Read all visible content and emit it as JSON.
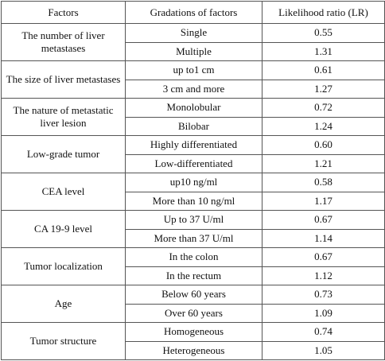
{
  "table": {
    "header": [
      "Factors",
      "Gradations of factors",
      "Likelihood ratio (LR)"
    ],
    "groups": [
      {
        "factor": "The number of liver metastases",
        "rows": [
          {
            "gradation": "Single",
            "lr": "0.55"
          },
          {
            "gradation": "Multiple",
            "lr": "1.31"
          }
        ]
      },
      {
        "factor": "The size of liver metastases",
        "rows": [
          {
            "gradation": "up to1 cm",
            "lr": "0.61"
          },
          {
            "gradation": "3 cm and more",
            "lr": "1.27"
          }
        ]
      },
      {
        "factor": "The nature of metastatic liver lesion",
        "rows": [
          {
            "gradation": "Monolobular",
            "lr": "0.72"
          },
          {
            "gradation": "Bilobar",
            "lr": "1.24"
          }
        ]
      },
      {
        "factor": "Low-grade tumor",
        "rows": [
          {
            "gradation": "Highly differentiated",
            "lr": "0.60"
          },
          {
            "gradation": "Low-differentiated",
            "lr": "1.21"
          }
        ]
      },
      {
        "factor": "CEA level",
        "rows": [
          {
            "gradation": "up10 ng/ml",
            "lr": "0.58"
          },
          {
            "gradation": "More than 10 ng/ml",
            "lr": "1.17"
          }
        ]
      },
      {
        "factor": "CA 19-9 level",
        "rows": [
          {
            "gradation": "Up to 37 U/ml",
            "lr": "0.67"
          },
          {
            "gradation": "More than 37 U/ml",
            "lr": "1.14"
          }
        ]
      },
      {
        "factor": "Tumor localization",
        "rows": [
          {
            "gradation": "In the colon",
            "lr": "0.67"
          },
          {
            "gradation": "In the rectum",
            "lr": "1.12"
          }
        ]
      },
      {
        "factor": "Age",
        "rows": [
          {
            "gradation": "Below 60 years",
            "lr": "0.73"
          },
          {
            "gradation": "Over 60 years",
            "lr": "1.09"
          }
        ]
      },
      {
        "factor": "Tumor structure",
        "rows": [
          {
            "gradation": "Homogeneous",
            "lr": "0.74"
          },
          {
            "gradation": "Heterogeneous",
            "lr": "1.05"
          }
        ]
      }
    ]
  }
}
